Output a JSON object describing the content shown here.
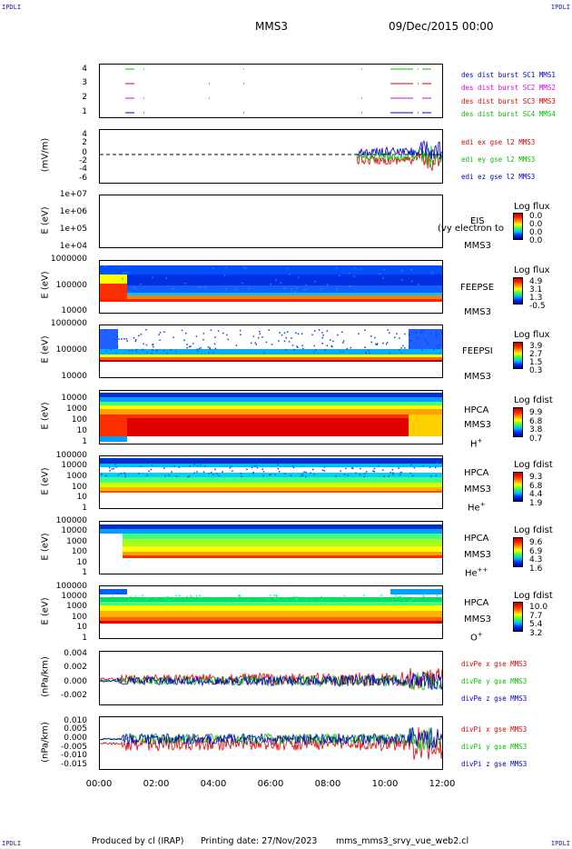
{
  "corners": {
    "tl": "IPDLI",
    "tr": "IPDLI",
    "bl": "IPDLI",
    "br": "IPDLI"
  },
  "header": {
    "title": "MMS3",
    "date": "09/Dec/2015 00:00"
  },
  "footer": {
    "produced": "Produced by cl (IRAP)",
    "printing": "Printing date: 27/Nov/2023",
    "file": "mms_mms3_srvy_vue_web2.cl"
  },
  "x_axis": {
    "ticks": [
      "00:00",
      "02:00",
      "04:00",
      "06:00",
      "08:00",
      "10:00",
      "12:00"
    ]
  },
  "colors": {
    "red": "#e00000",
    "magenta": "#e000e0",
    "green": "#00c000",
    "blue": "#0000d0"
  },
  "panels": {
    "burst": {
      "ticks": [
        "4",
        "3",
        "2",
        "1"
      ],
      "legend": [
        "des dist burst SC1 MMS1",
        "des dist burst SC2 MMS2",
        "des dist burst SC3 MMS3",
        "des dist burst SC4 MMS4"
      ]
    },
    "edi": {
      "ylabel": "(mV/m)",
      "ticks": [
        "4",
        "2",
        "0",
        "-2",
        "-4",
        "-6"
      ],
      "legend": [
        "edi ex gse l2 MMS3",
        "edi ey gse l2 MMS3",
        "edi ez gse l2 MMS3"
      ]
    },
    "eis": {
      "ylabel": "E (eV)",
      "ticks": [
        "1e+07",
        "1e+06",
        "1e+05",
        "1e+04"
      ],
      "tag1": "EIS",
      "overlay": "(vy electron to",
      "tag2": "MMS3",
      "cb_title": "Log flux",
      "cb_ticks": [
        "0.0",
        "0.0",
        "0.0",
        "0.0"
      ]
    },
    "feepse": {
      "ylabel": "E (eV)",
      "ticks": [
        "1000000",
        "100000",
        "10000"
      ],
      "tag1": "FEEPSE",
      "tag2": "MMS3",
      "cb_title": "Log flux",
      "cb_ticks": [
        "4.9",
        "3.1",
        "1.3",
        "-0.5"
      ]
    },
    "feepsi": {
      "ylabel": "E (eV)",
      "ticks": [
        "1000000",
        "100000",
        "10000"
      ],
      "tag1": "FEEPSI",
      "tag2": "MMS3",
      "cb_title": "Log flux",
      "cb_ticks": [
        "3.9",
        "2.7",
        "1.5",
        "0.3"
      ]
    },
    "hpca_h": {
      "ylabel": "E (eV)",
      "ticks": [
        "10000",
        "1000",
        "100",
        "10",
        "1"
      ],
      "tag1": "HPCA",
      "tag2": "MMS3",
      "species": "H",
      "charge": "+",
      "cb_title": "Log fdist",
      "cb_ticks": [
        "9.9",
        "6.8",
        "3.8",
        "0.7"
      ]
    },
    "hpca_he": {
      "ylabel": "E (eV)",
      "ticks": [
        "100000",
        "10000",
        "1000",
        "100",
        "10",
        "1"
      ],
      "tag1": "HPCA",
      "tag2": "MMS3",
      "species": "He",
      "charge": "+",
      "cb_title": "Log fdist",
      "cb_ticks": [
        "9.3",
        "6.8",
        "4.4",
        "1.9"
      ]
    },
    "hpca_he2": {
      "ylabel": "E (eV)",
      "ticks": [
        "100000",
        "10000",
        "1000",
        "100",
        "10",
        "1"
      ],
      "tag1": "HPCA",
      "tag2": "MMS3",
      "species": "He",
      "charge": "++",
      "cb_title": "Log fdist",
      "cb_ticks": [
        "9.6",
        "6.9",
        "4.3",
        "1.6"
      ]
    },
    "hpca_o": {
      "ylabel": "E (eV)",
      "ticks": [
        "100000",
        "10000",
        "1000",
        "100",
        "10",
        "1"
      ],
      "tag1": "HPCA",
      "tag2": "MMS3",
      "species": "O",
      "charge": "+",
      "cb_title": "Log fdist",
      "cb_ticks": [
        "10.0",
        "7.7",
        "5.4",
        "3.2"
      ]
    },
    "divpe": {
      "ylabel": "(nPa/km)",
      "ticks": [
        "0.004",
        "0.002",
        "0.000",
        "-0.002"
      ],
      "legend": [
        "divPe x gse MMS3",
        "divPe y gse MMS3",
        "divPe z gse MMS3"
      ]
    },
    "divpi": {
      "ylabel": "(nPa/km)",
      "ticks": [
        "0.010",
        "0.005",
        "0.000",
        "-0.005",
        "-0.010",
        "-0.015"
      ],
      "legend": [
        "divPi x gse MMS3",
        "divPi y gse MMS3",
        "divPi z gse MMS3"
      ]
    }
  },
  "chart_data": {
    "type": "multi-panel time series / spectrogram stack",
    "title": "MMS3",
    "date": "09/Dec/2015 00:00",
    "x_range": [
      "00:00",
      "12:00"
    ],
    "x_ticks": [
      "00:00",
      "02:00",
      "04:00",
      "06:00",
      "08:00",
      "10:00",
      "12:00"
    ],
    "panels": [
      {
        "name": "des dist burst",
        "type": "timeline",
        "ylim": [
          0.5,
          4.5
        ]
      },
      {
        "name": "edi e gse l2 MMS3",
        "type": "line",
        "ylabel": "(mV/m)",
        "ylim": [
          -6,
          5
        ],
        "series": [
          "edi ex gse l2 MMS3",
          "edi ey gse l2 MMS3",
          "edi ez gse l2 MMS3"
        ]
      },
      {
        "name": "EIS",
        "type": "heatmap",
        "ylabel": "E (eV)",
        "scale": "log",
        "ylim": [
          10000.0,
          10000000.0
        ]
      },
      {
        "name": "FEEPSE",
        "type": "heatmap",
        "ylabel": "E (eV)",
        "scale": "log",
        "ylim": [
          10000.0,
          1000000.0
        ]
      },
      {
        "name": "FEEPSI",
        "type": "heatmap",
        "ylabel": "E (eV)",
        "scale": "log",
        "ylim": [
          10000.0,
          1000000.0
        ]
      },
      {
        "name": "HPCA H+",
        "type": "heatmap",
        "ylabel": "E (eV)",
        "scale": "log",
        "ylim": [
          1,
          10000.0
        ]
      },
      {
        "name": "HPCA He+",
        "type": "heatmap",
        "ylabel": "E (eV)",
        "scale": "log",
        "ylim": [
          1,
          100000.0
        ]
      },
      {
        "name": "HPCA He++",
        "type": "heatmap",
        "ylabel": "E (eV)",
        "scale": "log",
        "ylim": [
          1,
          100000.0
        ]
      },
      {
        "name": "HPCA O+",
        "type": "heatmap",
        "ylabel": "E (eV)",
        "scale": "log",
        "ylim": [
          1,
          100000.0
        ]
      },
      {
        "name": "divPe gse MMS3",
        "type": "line",
        "ylabel": "(nPa/km)",
        "ylim": [
          -0.003,
          0.0045
        ],
        "series": [
          "divPe x gse MMS3",
          "divPe y gse MMS3",
          "divPe z gse MMS3"
        ]
      },
      {
        "name": "divPi gse MMS3",
        "type": "line",
        "ylabel": "(nPa/km)",
        "ylim": [
          -0.015,
          0.012
        ],
        "series": [
          "divPi x gse MMS3",
          "divPi y gse MMS3",
          "divPi z gse MMS3"
        ]
      }
    ]
  }
}
